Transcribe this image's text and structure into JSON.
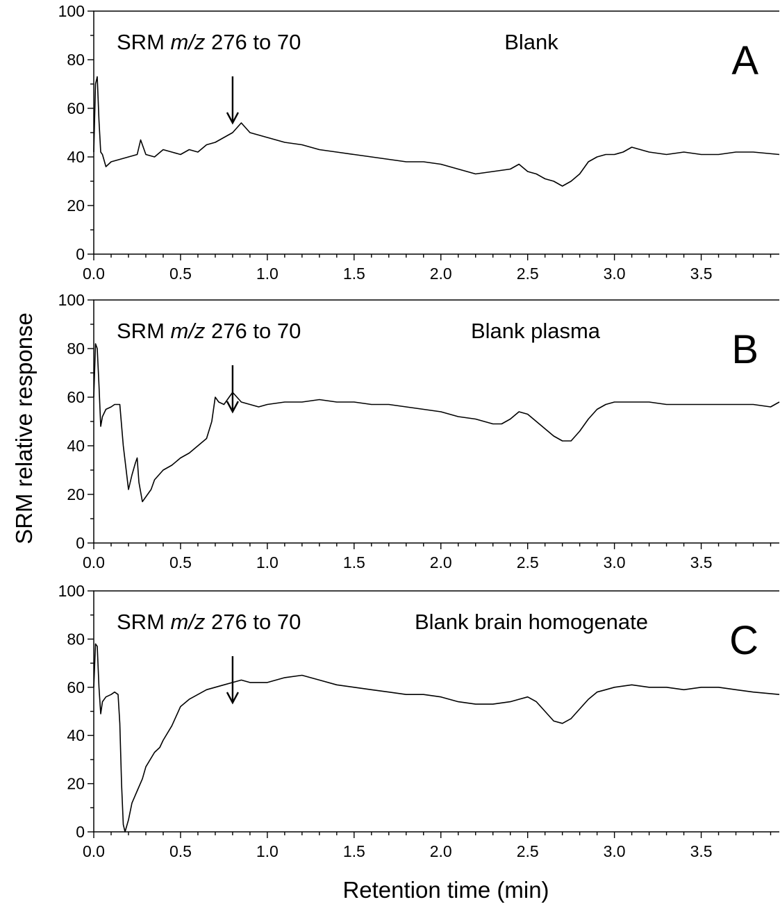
{
  "ylabel": "SRM relative response",
  "xlabel": "Retention time (min)",
  "chart_data": [
    {
      "type": "line",
      "panel": "A",
      "annotation": "SRM m/z 276 to 70",
      "annotation_parts": [
        "SRM ",
        "m/z",
        " 276 to 70"
      ],
      "sample": "Blank",
      "arrow_at_x": 0.8,
      "xlim": [
        0,
        3.95
      ],
      "ylim": [
        0,
        100
      ],
      "xticks": [
        0.0,
        0.5,
        1.0,
        1.5,
        2.0,
        2.5,
        3.0,
        3.5
      ],
      "xtick_labels": [
        "0.0",
        "0.5",
        "1.0",
        "1.5",
        "2.0",
        "2.5",
        "3.0",
        "3.5"
      ],
      "yticks": [
        0,
        20,
        40,
        60,
        80,
        100
      ],
      "ytick_labels": [
        "0",
        "20",
        "40",
        "60",
        "80",
        "100"
      ],
      "grid": false,
      "series": [
        {
          "x": [
            0.0,
            0.01,
            0.02,
            0.03,
            0.04,
            0.05,
            0.07,
            0.1,
            0.15,
            0.2,
            0.25,
            0.27,
            0.3,
            0.35,
            0.4,
            0.45,
            0.5,
            0.55,
            0.6,
            0.65,
            0.7,
            0.75,
            0.8,
            0.85,
            0.9,
            0.95,
            1.0,
            1.1,
            1.2,
            1.3,
            1.4,
            1.5,
            1.6,
            1.7,
            1.8,
            1.9,
            2.0,
            2.1,
            2.2,
            2.3,
            2.4,
            2.45,
            2.5,
            2.55,
            2.6,
            2.65,
            2.7,
            2.75,
            2.8,
            2.85,
            2.9,
            2.95,
            3.0,
            3.05,
            3.1,
            3.2,
            3.3,
            3.4,
            3.5,
            3.6,
            3.7,
            3.8,
            3.95
          ],
          "y": [
            42,
            70,
            73,
            55,
            42,
            41,
            36,
            38,
            39,
            40,
            41,
            47,
            41,
            40,
            43,
            42,
            41,
            43,
            42,
            45,
            46,
            48,
            50,
            54,
            50,
            49,
            48,
            46,
            45,
            43,
            42,
            41,
            40,
            39,
            38,
            38,
            37,
            35,
            33,
            34,
            35,
            37,
            34,
            33,
            31,
            30,
            28,
            30,
            33,
            38,
            40,
            41,
            41,
            42,
            44,
            42,
            41,
            42,
            41,
            41,
            42,
            42,
            41
          ]
        }
      ]
    },
    {
      "type": "line",
      "panel": "B",
      "annotation": "SRM m/z 276 to 70",
      "annotation_parts": [
        "SRM ",
        "m/z",
        " 276 to 70"
      ],
      "sample": "Blank plasma",
      "arrow_at_x": 0.8,
      "xlim": [
        0,
        3.95
      ],
      "ylim": [
        0,
        100
      ],
      "xticks": [
        0.0,
        0.5,
        1.0,
        1.5,
        2.0,
        2.5,
        3.0,
        3.5
      ],
      "xtick_labels": [
        "0.0",
        "0.5",
        "1.0",
        "1.5",
        "2.0",
        "2.5",
        "3.0",
        "3.5"
      ],
      "yticks": [
        0,
        20,
        40,
        60,
        80,
        100
      ],
      "ytick_labels": [
        "0",
        "20",
        "40",
        "60",
        "80",
        "100"
      ],
      "grid": false,
      "series": [
        {
          "x": [
            0.0,
            0.01,
            0.02,
            0.03,
            0.04,
            0.05,
            0.07,
            0.1,
            0.12,
            0.15,
            0.17,
            0.19,
            0.2,
            0.22,
            0.24,
            0.25,
            0.26,
            0.28,
            0.3,
            0.33,
            0.35,
            0.4,
            0.45,
            0.5,
            0.55,
            0.6,
            0.65,
            0.68,
            0.7,
            0.72,
            0.75,
            0.8,
            0.85,
            0.9,
            0.95,
            1.0,
            1.1,
            1.2,
            1.3,
            1.4,
            1.5,
            1.6,
            1.7,
            1.8,
            1.9,
            2.0,
            2.1,
            2.2,
            2.3,
            2.35,
            2.4,
            2.45,
            2.5,
            2.55,
            2.6,
            2.65,
            2.7,
            2.75,
            2.8,
            2.85,
            2.9,
            2.95,
            3.0,
            3.1,
            3.2,
            3.3,
            3.4,
            3.5,
            3.6,
            3.7,
            3.8,
            3.9,
            3.95
          ],
          "y": [
            60,
            82,
            80,
            65,
            48,
            52,
            55,
            56,
            57,
            57,
            40,
            28,
            22,
            28,
            33,
            35,
            25,
            17,
            19,
            22,
            26,
            30,
            32,
            35,
            37,
            40,
            43,
            50,
            60,
            58,
            57,
            62,
            58,
            57,
            56,
            57,
            58,
            58,
            59,
            58,
            58,
            57,
            57,
            56,
            55,
            54,
            52,
            51,
            49,
            49,
            51,
            54,
            53,
            50,
            47,
            44,
            42,
            42,
            46,
            51,
            55,
            57,
            58,
            58,
            58,
            57,
            57,
            57,
            57,
            57,
            57,
            56,
            58
          ]
        }
      ]
    },
    {
      "type": "line",
      "panel": "C",
      "annotation": "SRM m/z 276 to 70",
      "annotation_parts": [
        "SRM ",
        "m/z",
        " 276 to 70"
      ],
      "sample": "Blank brain homogenate",
      "arrow_at_x": 0.8,
      "xlim": [
        0,
        3.95
      ],
      "ylim": [
        0,
        100
      ],
      "xticks": [
        0.0,
        0.5,
        1.0,
        1.5,
        2.0,
        2.5,
        3.0,
        3.5
      ],
      "xtick_labels": [
        "0.0",
        "0.5",
        "1.0",
        "1.5",
        "2.0",
        "2.5",
        "3.0",
        "3.5"
      ],
      "yticks": [
        0,
        20,
        40,
        60,
        80,
        100
      ],
      "ytick_labels": [
        "0",
        "20",
        "40",
        "60",
        "80",
        "100"
      ],
      "grid": false,
      "series": [
        {
          "x": [
            0.0,
            0.01,
            0.02,
            0.03,
            0.04,
            0.05,
            0.07,
            0.1,
            0.12,
            0.14,
            0.15,
            0.16,
            0.17,
            0.18,
            0.2,
            0.22,
            0.25,
            0.28,
            0.3,
            0.35,
            0.38,
            0.4,
            0.45,
            0.5,
            0.55,
            0.6,
            0.65,
            0.7,
            0.75,
            0.8,
            0.85,
            0.9,
            1.0,
            1.1,
            1.2,
            1.3,
            1.4,
            1.5,
            1.6,
            1.7,
            1.8,
            1.9,
            2.0,
            2.1,
            2.2,
            2.3,
            2.4,
            2.45,
            2.5,
            2.55,
            2.6,
            2.65,
            2.7,
            2.75,
            2.8,
            2.85,
            2.9,
            2.95,
            3.0,
            3.1,
            3.2,
            3.3,
            3.4,
            3.5,
            3.6,
            3.7,
            3.8,
            3.95
          ],
          "y": [
            60,
            78,
            77,
            60,
            49,
            54,
            56,
            57,
            58,
            57,
            45,
            20,
            3,
            0,
            5,
            12,
            17,
            22,
            27,
            33,
            35,
            38,
            44,
            52,
            55,
            57,
            59,
            60,
            61,
            62,
            63,
            62,
            62,
            64,
            65,
            63,
            61,
            60,
            59,
            58,
            57,
            57,
            56,
            54,
            53,
            53,
            54,
            55,
            56,
            54,
            50,
            46,
            45,
            47,
            51,
            55,
            58,
            59,
            60,
            61,
            60,
            60,
            59,
            60,
            60,
            59,
            58,
            57
          ]
        }
      ]
    }
  ]
}
